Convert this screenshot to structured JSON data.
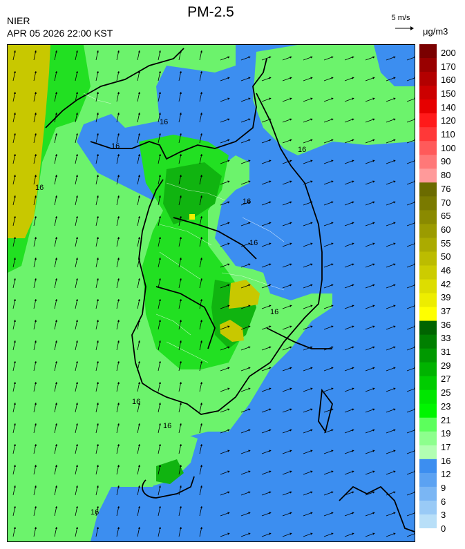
{
  "header": {
    "org": "NIER",
    "datetime": "APR 05 2026 22:00 KST",
    "title": "PM-2.5",
    "wind_scale": "5 m/s",
    "units": "μg/m3"
  },
  "legend": {
    "labels": [
      "200",
      "170",
      "160",
      "150",
      "140",
      "120",
      "110",
      "100",
      "90",
      "80",
      "76",
      "70",
      "65",
      "60",
      "55",
      "50",
      "46",
      "42",
      "39",
      "37",
      "36",
      "33",
      "31",
      "29",
      "27",
      "25",
      "23",
      "21",
      "19",
      "17",
      "16",
      "12",
      "9",
      "6",
      "3",
      "0"
    ],
    "colors": [
      "#7a0000",
      "#990000",
      "#b30000",
      "#cc0000",
      "#e60000",
      "#ff1a1a",
      "#ff3838",
      "#ff5a5a",
      "#ff7878",
      "#ff9a9a",
      "#6b6b00",
      "#7a7a00",
      "#8a8a00",
      "#9b9b00",
      "#abab00",
      "#bcbc00",
      "#cccc00",
      "#dddd00",
      "#eded00",
      "#ffff00",
      "#006400",
      "#007f00",
      "#009900",
      "#00b300",
      "#00cc00",
      "#00e600",
      "#00f500",
      "#5cff5c",
      "#8dff8d",
      "#b2ffb2",
      "#3c8ef0",
      "#5ba2f2",
      "#7ab6f4",
      "#99caf6",
      "#b8dff8"
    ],
    "map_colors": {
      "blue": "#3c8ef0",
      "lightgreen": "#6cf36c",
      "green": "#22e022",
      "darkgreen": "#10b410",
      "olive": "#c8c800",
      "coastline": "#000000",
      "borders": "#ffffff"
    },
    "contour_labels": [
      "16",
      "16",
      "16",
      "16",
      "16",
      "16",
      "16",
      "16",
      "16",
      "16"
    ]
  }
}
